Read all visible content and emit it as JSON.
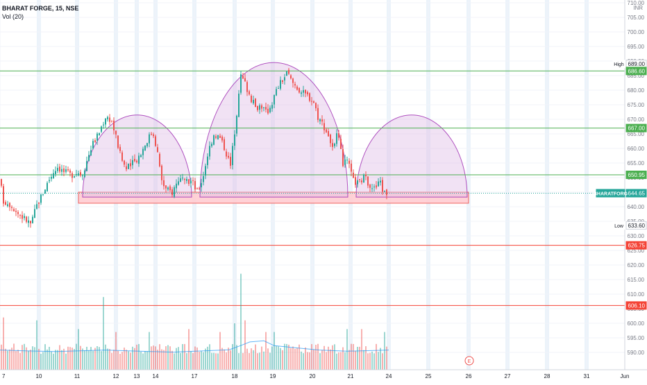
{
  "header": {
    "title": "BHARAT FORGE, 15, NSE",
    "volume_label": "Vol (20)"
  },
  "currency": "INR",
  "colors": {
    "up": "#26a69a",
    "down": "#ef5350",
    "green_line": "#4caf50",
    "red_line": "#f44336",
    "dome_fill": "#e1bee7",
    "dome_stroke": "#9c27b0",
    "zone_fill": "#ffcdd2",
    "ma_line": "#2196f3",
    "grid": "#f0f3fa",
    "session_band": "#dbe9f6",
    "current_price": "#26a69a"
  },
  "chart_data": {
    "type": "candlestick",
    "symbol": "BHARATFORG",
    "ylim": [
      587,
      710
    ],
    "y_ticks": [
      590,
      595,
      600,
      605,
      610,
      615,
      620,
      625,
      630,
      635,
      640,
      645,
      650,
      655,
      660,
      665,
      670,
      675,
      680,
      685,
      690,
      695,
      700,
      705,
      710
    ],
    "x_ticks": [
      "7",
      "10",
      "11",
      "12",
      "13",
      "14",
      "17",
      "18",
      "19",
      "20",
      "21",
      "24",
      "25",
      "26",
      "27",
      "28",
      "31",
      "Jun"
    ],
    "price_labels": [
      {
        "text": "High",
        "value": "689.00",
        "price": 689.0,
        "style": "plain"
      },
      {
        "text": "",
        "value": "686.60",
        "price": 686.6,
        "style": "green"
      },
      {
        "text": "",
        "value": "667.00",
        "price": 667.0,
        "style": "green"
      },
      {
        "text": "",
        "value": "650.95",
        "price": 650.95,
        "style": "green"
      },
      {
        "text": "BHARATFORG",
        "value": "644.65",
        "price": 644.65,
        "style": "current"
      },
      {
        "text": "Low",
        "value": "633.60",
        "price": 633.6,
        "style": "plain"
      },
      {
        "text": "",
        "value": "626.75",
        "price": 626.75,
        "style": "red"
      },
      {
        "text": "",
        "value": "606.10",
        "price": 606.1,
        "style": "red"
      }
    ],
    "horizontal_lines": [
      {
        "price": 686.6,
        "color": "green"
      },
      {
        "price": 667.0,
        "color": "green"
      },
      {
        "price": 650.95,
        "color": "green"
      },
      {
        "price": 626.75,
        "color": "red"
      },
      {
        "price": 606.1,
        "color": "red"
      }
    ],
    "support_zone": {
      "low": 641.2,
      "high": 645.0,
      "from_day": "11",
      "to_day": "26"
    },
    "domes": [
      {
        "start_day": "11",
        "end_day": "17",
        "peak": 671.5
      },
      {
        "start_day": "17",
        "end_day": "21",
        "peak": 689.5
      },
      {
        "start_day": "21",
        "end_day": "26",
        "peak": 671.5
      }
    ],
    "close_path": [
      [
        0,
        649
      ],
      [
        5,
        642
      ],
      [
        15,
        641
      ],
      [
        25,
        638
      ],
      [
        35,
        636
      ],
      [
        45,
        634
      ],
      [
        52,
        640
      ],
      [
        62,
        645
      ],
      [
        72,
        650
      ],
      [
        82,
        654
      ],
      [
        92,
        652
      ],
      [
        102,
        651
      ],
      [
        112,
        652
      ],
      [
        118,
        651
      ],
      [
        124,
        655
      ],
      [
        132,
        661
      ],
      [
        142,
        665
      ],
      [
        152,
        671
      ],
      [
        160,
        670
      ],
      [
        166,
        665
      ],
      [
        174,
        657
      ],
      [
        182,
        653
      ],
      [
        192,
        655
      ],
      [
        202,
        658
      ],
      [
        212,
        663
      ],
      [
        220,
        666
      ],
      [
        226,
        660
      ],
      [
        232,
        650
      ],
      [
        238,
        646
      ],
      [
        248,
        645
      ],
      [
        258,
        650
      ],
      [
        266,
        648
      ],
      [
        276,
        649
      ],
      [
        284,
        645
      ],
      [
        292,
        650
      ],
      [
        300,
        659
      ],
      [
        308,
        665
      ],
      [
        316,
        664
      ],
      [
        324,
        660
      ],
      [
        332,
        654
      ],
      [
        340,
        670
      ],
      [
        346,
        685
      ],
      [
        352,
        683
      ],
      [
        360,
        678
      ],
      [
        368,
        674
      ],
      [
        376,
        675
      ],
      [
        384,
        672
      ],
      [
        392,
        676
      ],
      [
        400,
        681
      ],
      [
        408,
        684
      ],
      [
        414,
        686
      ],
      [
        420,
        683
      ],
      [
        428,
        681
      ],
      [
        436,
        679
      ],
      [
        444,
        678
      ],
      [
        452,
        676
      ],
      [
        458,
        671
      ],
      [
        466,
        668
      ],
      [
        474,
        664
      ],
      [
        480,
        659
      ],
      [
        486,
        665
      ],
      [
        494,
        655
      ],
      [
        502,
        655
      ],
      [
        508,
        649
      ],
      [
        516,
        648
      ],
      [
        524,
        650
      ],
      [
        532,
        648
      ],
      [
        540,
        646
      ],
      [
        548,
        649
      ],
      [
        552,
        645
      ],
      [
        558,
        644.65
      ]
    ],
    "volume": {
      "ma_path": [
        [
          0,
          590.8
        ],
        [
          40,
          590.5
        ],
        [
          80,
          590.3
        ],
        [
          110,
          590.5
        ],
        [
          150,
          590.8
        ],
        [
          200,
          590.4
        ],
        [
          250,
          590.1
        ],
        [
          300,
          590.6
        ],
        [
          330,
          590.9
        ],
        [
          345,
          592.2
        ],
        [
          360,
          593.6
        ],
        [
          380,
          594.0
        ],
        [
          395,
          592.3
        ],
        [
          430,
          591.5
        ],
        [
          460,
          590.8
        ],
        [
          500,
          590.4
        ],
        [
          530,
          590.6
        ],
        [
          560,
          590.8
        ]
      ],
      "spikes": [
        [
          6,
          602
        ],
        [
          54,
          601
        ],
        [
          112,
          598
        ],
        [
          150,
          609
        ],
        [
          167,
          597
        ],
        [
          216,
          597
        ],
        [
          272,
          598
        ],
        [
          316,
          597
        ],
        [
          337,
          600
        ],
        [
          347,
          617
        ],
        [
          352,
          601
        ],
        [
          383,
          597
        ],
        [
          395,
          597
        ],
        [
          500,
          598
        ],
        [
          520,
          598
        ],
        [
          555,
          597
        ]
      ]
    },
    "earnings_marker": {
      "label": "E",
      "x_day": "25.5"
    }
  }
}
